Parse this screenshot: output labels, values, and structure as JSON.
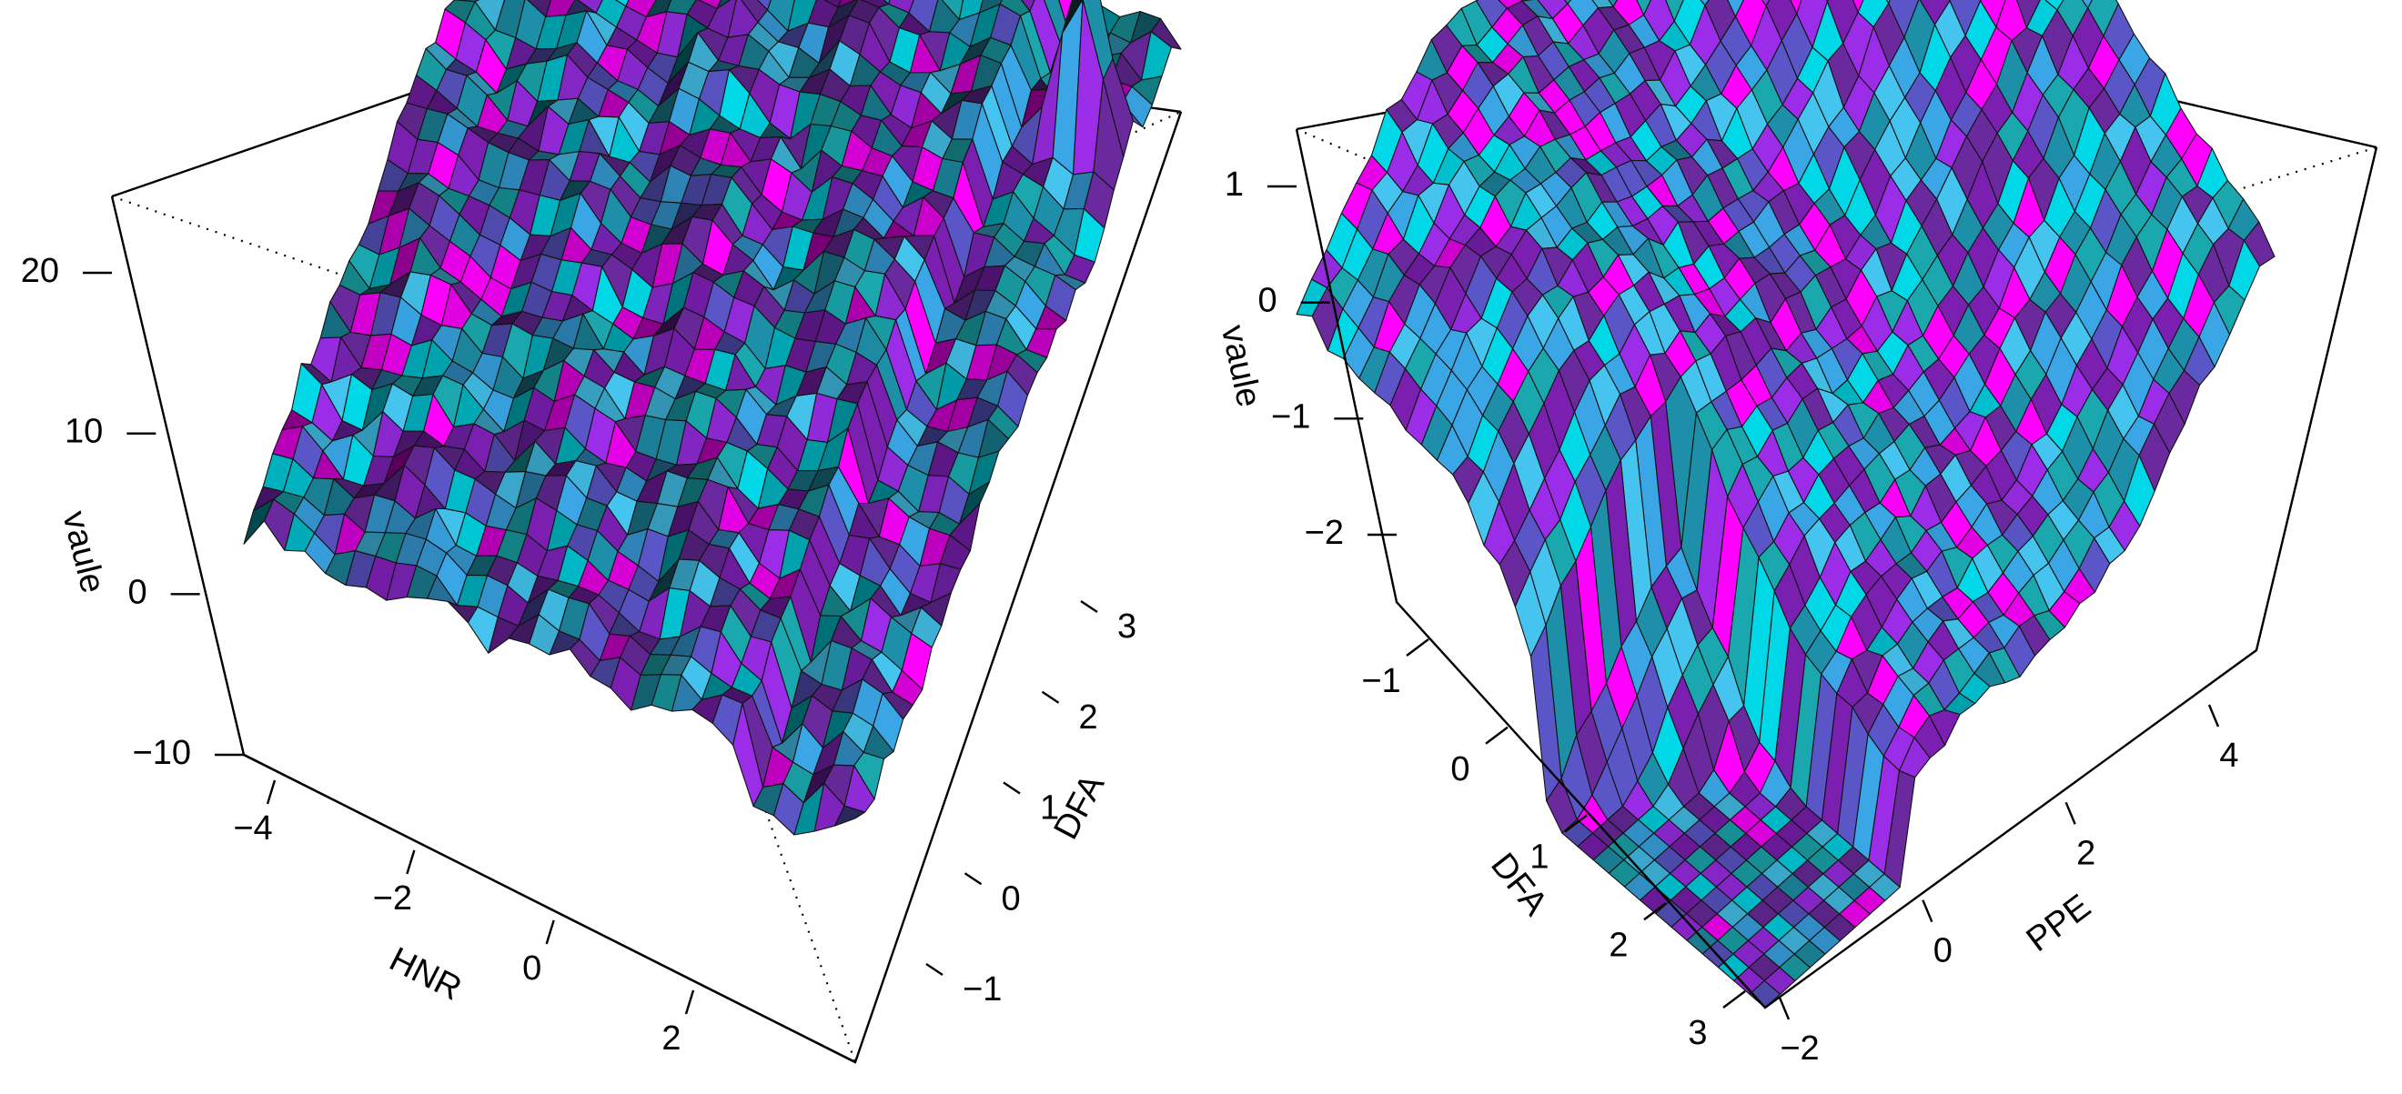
{
  "palette": [
    "#00d8e8",
    "#9b2de8",
    "#ff00ff",
    "#1e8fa8",
    "#5b56c8",
    "#3aa6e6",
    "#7a1fb0",
    "#1aa7ad",
    "#44c4ee",
    "#6a2a9e"
  ],
  "chart_data": [
    {
      "type": "surface3d",
      "xlabel": "HNR",
      "ylabel": "DFA",
      "zlabel": "vaule",
      "x_ticks": [
        "−4",
        "−2",
        "0",
        "2"
      ],
      "y_ticks": [
        "−1",
        "0",
        "1",
        "2",
        "3"
      ],
      "z_ticks": [
        "−10",
        "0",
        "10",
        "20"
      ],
      "xlim": [
        -4.6,
        3.6
      ],
      "ylim": [
        -2,
        3.3
      ],
      "zlim": [
        -10,
        24
      ],
      "surface": "mostly flat around 0 to 5, rising toward low DFA / high HNR; sharp spike to about 12 near HNR 3, DFA 2.5"
    },
    {
      "type": "surface3d",
      "xlabel": "DFA",
      "ylabel": "PPE",
      "zlabel": "vaule",
      "x_ticks": [
        "−1",
        "0",
        "1",
        "2",
        "3"
      ],
      "y_ticks": [
        "−2",
        "0",
        "2",
        "4"
      ],
      "z_ticks": [
        "−2",
        "−1",
        "0",
        "1"
      ],
      "xlim": [
        -1.6,
        3
      ],
      "ylim": [
        -2,
        5.5
      ],
      "zlim": [
        -2.8,
        1.4
      ],
      "surface": "saddle-like: high ridges (about 1) at low DFA, low values (about −2.4) near DFA 2, PPE −2; step drop at PPE ≈ 0 and DFA ≈ −1"
    }
  ]
}
